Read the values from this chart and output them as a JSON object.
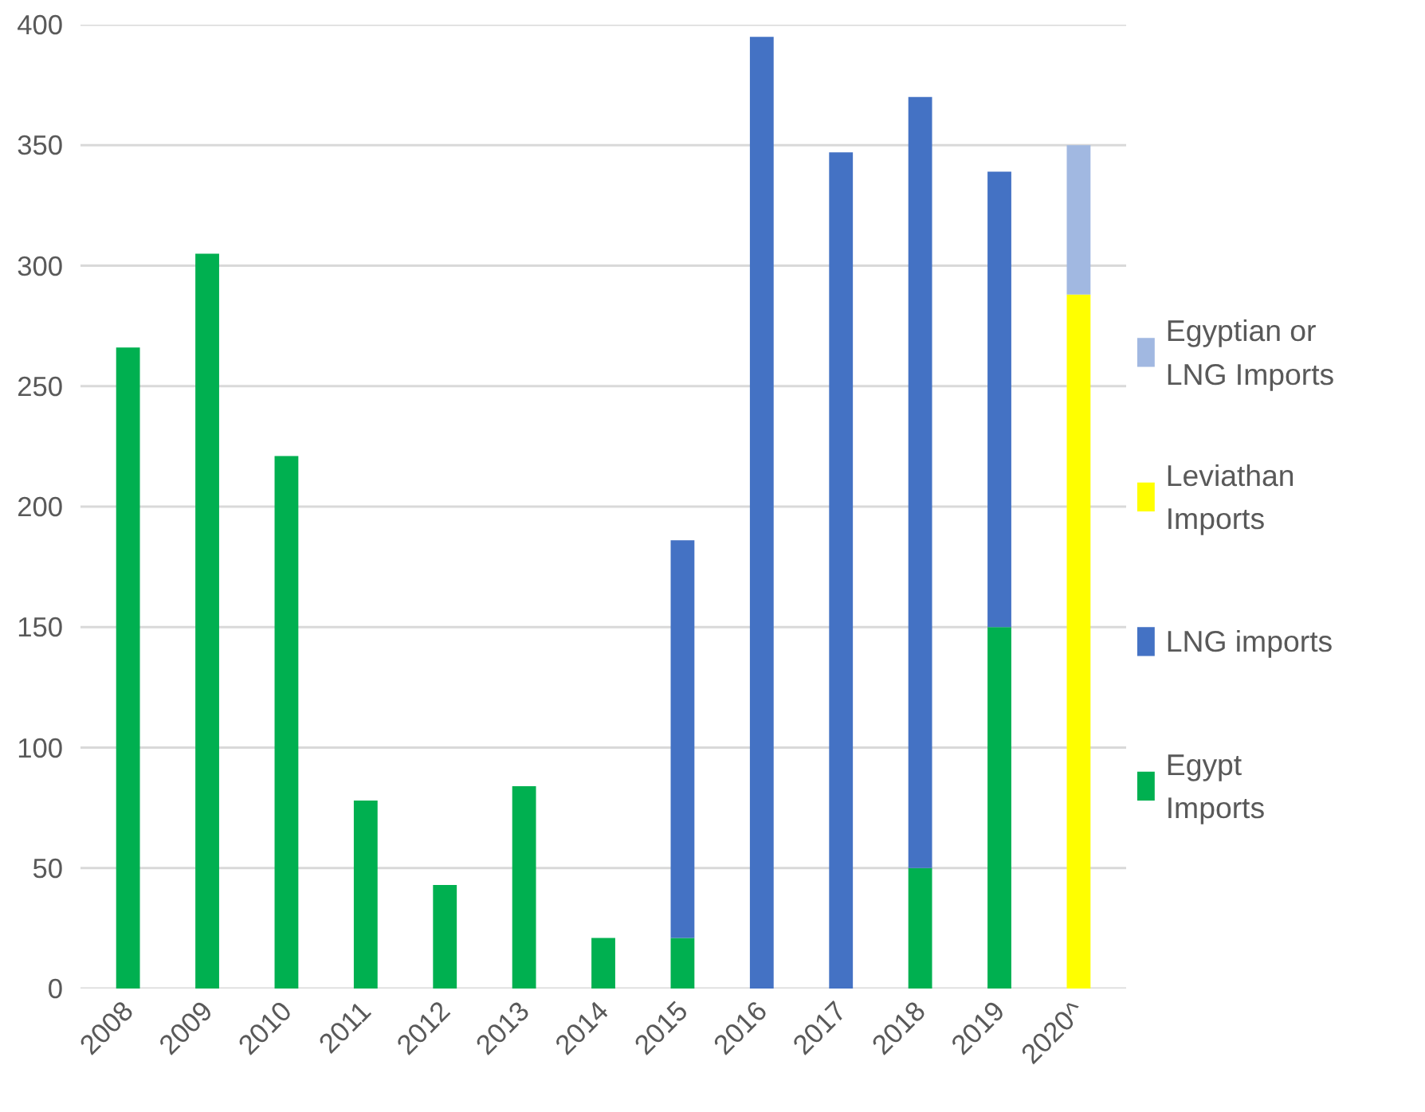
{
  "chart_data": {
    "type": "bar",
    "stacked": true,
    "categories": [
      "2008",
      "2009",
      "2010",
      "2011",
      "2012",
      "2013",
      "2014",
      "2015",
      "2016",
      "2017",
      "2018",
      "2019",
      "2020^"
    ],
    "series": [
      {
        "name": "Egypt Imports",
        "color": "#00b050",
        "values": [
          266,
          305,
          221,
          78,
          43,
          84,
          21,
          21,
          null,
          null,
          50,
          150,
          null
        ]
      },
      {
        "name": "LNG imports",
        "color": "#4472c4",
        "values": [
          null,
          null,
          null,
          null,
          null,
          null,
          null,
          165,
          395,
          347,
          320,
          189,
          null
        ]
      },
      {
        "name": "Leviathan Imports",
        "color": "#ffff00",
        "values": [
          null,
          null,
          null,
          null,
          null,
          null,
          null,
          null,
          null,
          null,
          null,
          null,
          288
        ]
      },
      {
        "name": "Egyptian or LNG Imports",
        "color": "#a1b8e1",
        "values": [
          null,
          null,
          null,
          null,
          null,
          null,
          null,
          null,
          null,
          null,
          null,
          null,
          62
        ]
      }
    ],
    "ylim": [
      0,
      400
    ],
    "yticks": [
      0,
      50,
      100,
      150,
      200,
      250,
      300,
      350,
      400
    ],
    "grid": "y",
    "legend": "right"
  }
}
